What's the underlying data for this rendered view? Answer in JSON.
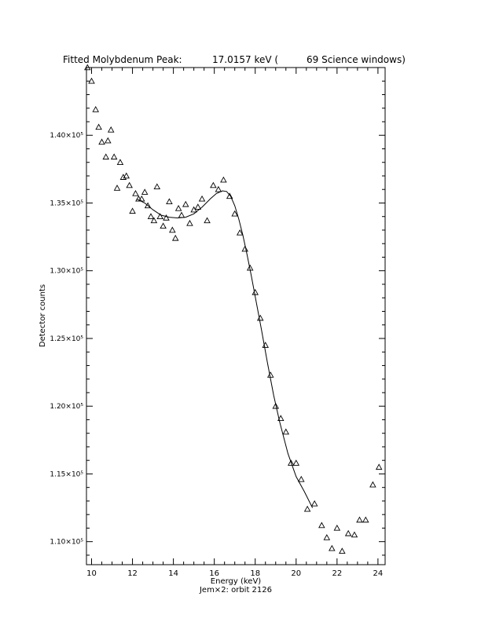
{
  "title": {
    "label": "Fitted Molybdenum Peak:",
    "energy": "17.0157 keV (",
    "windows": "69 Science windows)"
  },
  "footer": "Jem×2: orbit 2126",
  "chart_data": {
    "type": "scatter",
    "xlabel": "Energy (keV)",
    "ylabel": "Detector counts",
    "xlim": [
      9.75,
      24.35
    ],
    "ylim": [
      108300,
      145000
    ],
    "x_ticks": [
      10,
      12,
      14,
      16,
      18,
      20,
      22,
      24
    ],
    "y_ticks": [
      110000,
      115000,
      120000,
      125000,
      130000,
      135000,
      140000
    ],
    "y_tick_labels": [
      "1.10×10⁵",
      "1.15×10⁵",
      "1.20×10⁵",
      "1.25×10⁵",
      "1.30×10⁵",
      "1.35×10⁵",
      "1.40×10⁵"
    ],
    "marker": "open-triangle",
    "grid": false,
    "series": [
      {
        "kind": "points",
        "points": [
          [
            9.8,
            145000
          ],
          [
            10.0,
            144000
          ],
          [
            10.2,
            141900
          ],
          [
            10.35,
            140600
          ],
          [
            10.5,
            139500
          ],
          [
            10.7,
            138400
          ],
          [
            10.8,
            139600
          ],
          [
            10.95,
            140400
          ],
          [
            11.1,
            138400
          ],
          [
            11.25,
            136100
          ],
          [
            11.4,
            138000
          ],
          [
            11.55,
            136900
          ],
          [
            11.7,
            137000
          ],
          [
            11.85,
            136300
          ],
          [
            12.0,
            134400
          ],
          [
            12.15,
            135700
          ],
          [
            12.3,
            135300
          ],
          [
            12.45,
            135300
          ],
          [
            12.6,
            135800
          ],
          [
            12.75,
            134800
          ],
          [
            12.9,
            134000
          ],
          [
            13.05,
            133700
          ],
          [
            13.2,
            136200
          ],
          [
            13.35,
            134000
          ],
          [
            13.5,
            133300
          ],
          [
            13.65,
            133900
          ],
          [
            13.8,
            135100
          ],
          [
            13.95,
            133000
          ],
          [
            14.1,
            132400
          ],
          [
            14.25,
            134600
          ],
          [
            14.4,
            134100
          ],
          [
            14.6,
            134900
          ],
          [
            14.8,
            133500
          ],
          [
            15.0,
            134500
          ],
          [
            15.2,
            134700
          ],
          [
            15.4,
            135300
          ],
          [
            15.65,
            133700
          ],
          [
            15.95,
            136300
          ],
          [
            16.2,
            136000
          ],
          [
            16.45,
            136700
          ],
          [
            16.75,
            135500
          ],
          [
            17.0,
            134200
          ],
          [
            17.25,
            132800
          ],
          [
            17.5,
            131600
          ],
          [
            17.75,
            130200
          ],
          [
            18.0,
            128400
          ],
          [
            18.25,
            126500
          ],
          [
            18.5,
            124500
          ],
          [
            18.75,
            122300
          ],
          [
            19.0,
            120000
          ],
          [
            19.25,
            119100
          ],
          [
            19.5,
            118100
          ],
          [
            19.75,
            115800
          ],
          [
            20.0,
            115800
          ],
          [
            20.25,
            114600
          ],
          [
            20.55,
            112400
          ],
          [
            20.9,
            112800
          ],
          [
            21.25,
            111200
          ],
          [
            21.5,
            110300
          ],
          [
            21.75,
            109500
          ],
          [
            22.0,
            111000
          ],
          [
            22.25,
            109300
          ],
          [
            22.55,
            110600
          ],
          [
            22.85,
            110500
          ],
          [
            23.1,
            111600
          ],
          [
            23.4,
            111600
          ],
          [
            23.75,
            114200
          ],
          [
            24.05,
            115500
          ]
        ]
      },
      {
        "kind": "fit",
        "points": [
          [
            12.2,
            135300
          ],
          [
            12.6,
            135000
          ],
          [
            13.0,
            134500
          ],
          [
            13.4,
            134100
          ],
          [
            13.8,
            133950
          ],
          [
            14.2,
            133900
          ],
          [
            14.6,
            133950
          ],
          [
            15.0,
            134200
          ],
          [
            15.4,
            134700
          ],
          [
            15.8,
            135300
          ],
          [
            16.1,
            135700
          ],
          [
            16.4,
            135900
          ],
          [
            16.6,
            135850
          ],
          [
            16.8,
            135500
          ],
          [
            17.0,
            134800
          ],
          [
            17.2,
            133800
          ],
          [
            17.4,
            132600
          ],
          [
            17.6,
            131200
          ],
          [
            17.8,
            129700
          ],
          [
            18.0,
            128100
          ],
          [
            18.3,
            125700
          ],
          [
            18.6,
            123200
          ],
          [
            18.9,
            120800
          ],
          [
            19.2,
            118800
          ],
          [
            19.6,
            116500
          ],
          [
            20.0,
            114800
          ],
          [
            20.4,
            113700
          ],
          [
            20.8,
            112500
          ]
        ]
      }
    ]
  }
}
